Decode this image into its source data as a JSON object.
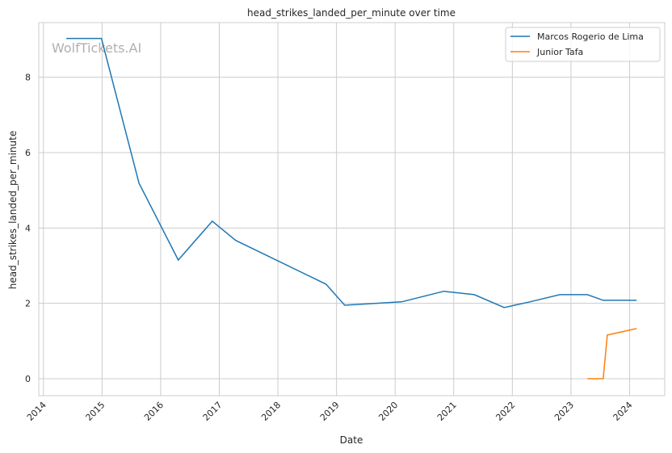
{
  "chart_data": {
    "type": "line",
    "title": "head_strikes_landed_per_minute over time",
    "xlabel": "Date",
    "ylabel": "head_strikes_landed_per_minute",
    "xlim": [
      2013.92,
      2024.6
    ],
    "ylim": [
      -0.45,
      9.45
    ],
    "x_ticks": [
      "2014",
      "2015",
      "2016",
      "2017",
      "2018",
      "2019",
      "2020",
      "2021",
      "2022",
      "2023",
      "2024"
    ],
    "y_ticks": [
      "0",
      "2",
      "4",
      "6",
      "8"
    ],
    "grid": true,
    "legend_position": "top-right",
    "watermark": "WolfTickets.AI",
    "series": [
      {
        "name": "Marcos Rogerio de Lima",
        "color": "#1f77b4",
        "x": [
          2014.39,
          2014.99,
          2015.63,
          2016.3,
          2016.88,
          2017.28,
          2018.82,
          2019.14,
          2020.11,
          2020.83,
          2021.35,
          2021.86,
          2022.3,
          2022.81,
          2023.28,
          2023.55,
          2024.12
        ],
        "y": [
          9.03,
          9.03,
          5.19,
          3.15,
          4.18,
          3.67,
          2.51,
          1.95,
          2.04,
          2.32,
          2.23,
          1.89,
          2.04,
          2.23,
          2.23,
          2.08,
          2.08
        ]
      },
      {
        "name": "Junior Tafa",
        "color": "#ff7f0e",
        "x": [
          2023.28,
          2023.55,
          2023.62,
          2024.12
        ],
        "y": [
          0,
          0,
          1.16,
          1.33
        ]
      }
    ]
  }
}
